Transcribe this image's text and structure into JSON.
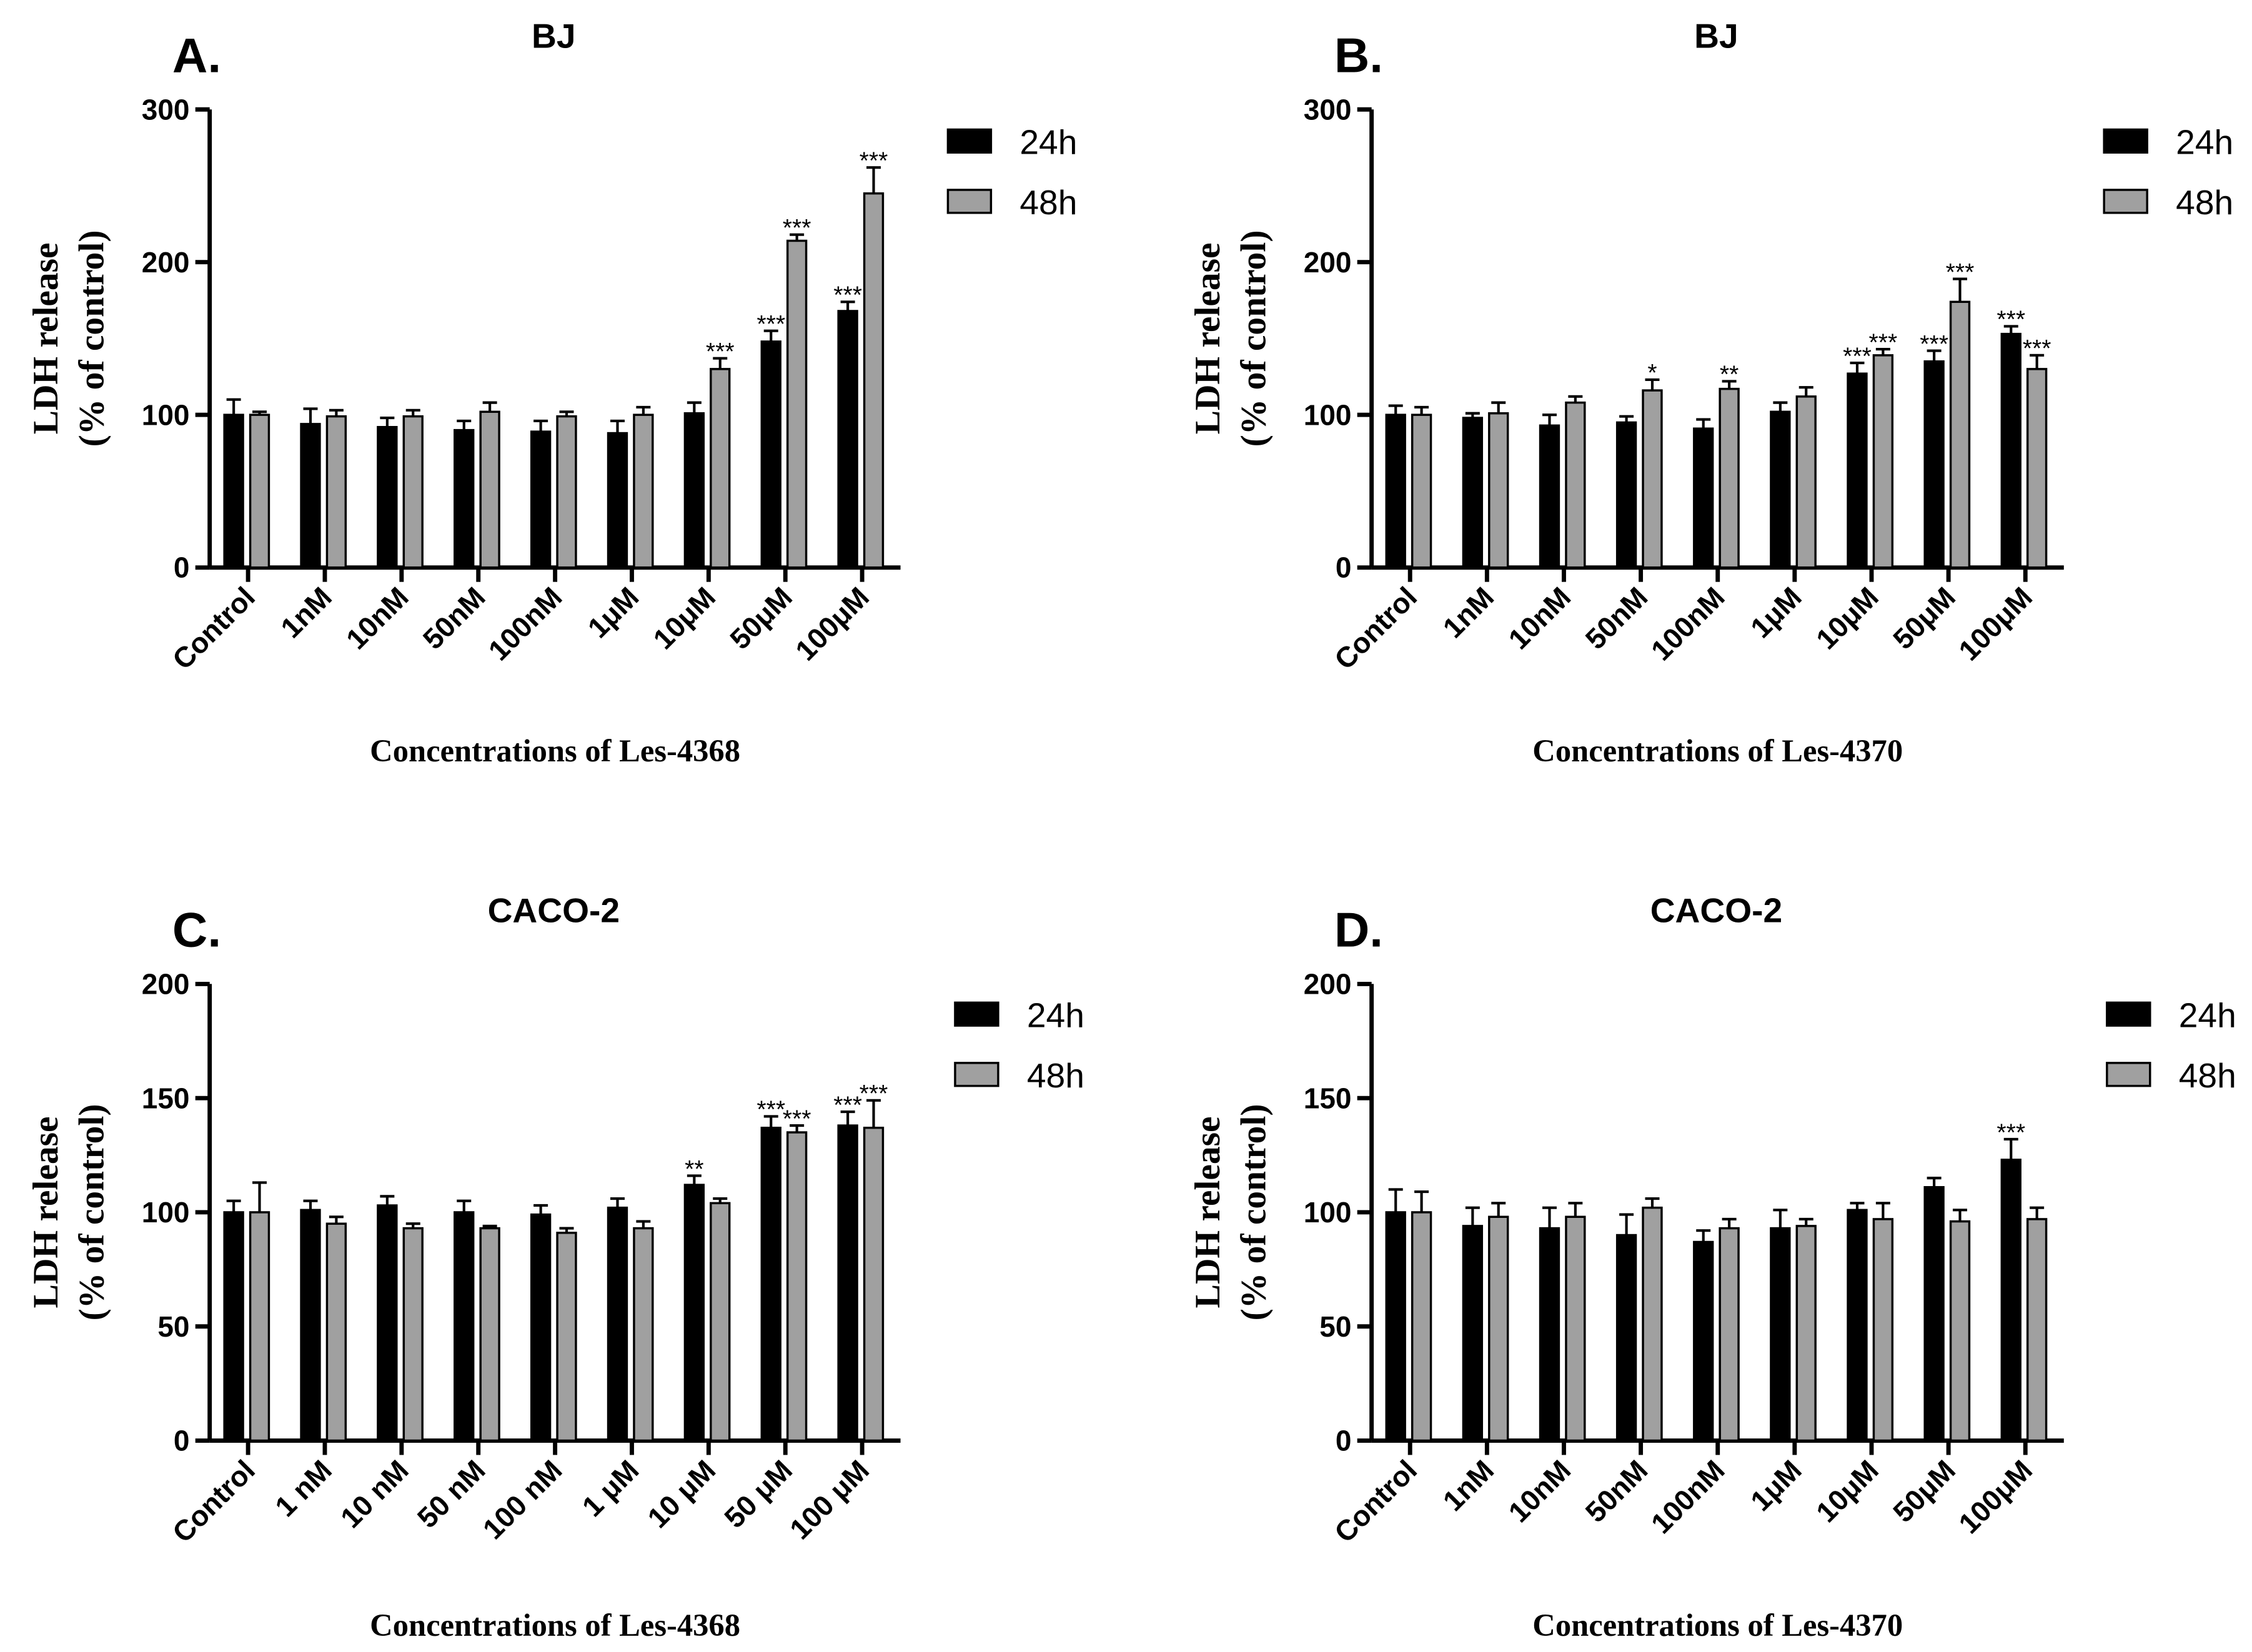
{
  "chart_data": [
    {
      "type": "bar",
      "panel_label": "A.",
      "title": "BJ",
      "x_label": "Concentrations of Les-4368",
      "y_label": [
        "LDH release",
        "(% of control)"
      ],
      "categories": [
        "Control",
        "1nM",
        "10nM",
        "50nM",
        "100nM",
        "1μM",
        "10μM",
        "50μM",
        "100μM"
      ],
      "series": [
        {
          "name": "24h",
          "color": "#000000",
          "values": [
            100,
            94,
            92,
            90,
            89,
            88,
            101,
            148,
            168
          ],
          "errors": [
            10,
            10,
            6,
            6,
            7,
            8,
            7,
            7,
            6
          ],
          "annotations": [
            null,
            null,
            null,
            null,
            null,
            null,
            null,
            "***",
            "***"
          ]
        },
        {
          "name": "48h",
          "color": "#a0a0a0",
          "values": [
            100,
            99,
            99,
            102,
            99,
            100,
            130,
            214,
            245
          ],
          "errors": [
            2,
            4,
            4,
            6,
            3,
            5,
            7,
            4,
            17
          ],
          "annotations": [
            null,
            null,
            null,
            null,
            null,
            null,
            "***",
            "***",
            "***"
          ]
        }
      ],
      "ylim": [
        0,
        300
      ],
      "yticks": [
        0,
        100,
        200,
        300
      ]
    },
    {
      "type": "bar",
      "panel_label": "B.",
      "title": "BJ",
      "x_label": "Concentrations of Les-4370",
      "y_label": [
        "LDH release",
        "(% of control)"
      ],
      "categories": [
        "Control",
        "1nM",
        "10nM",
        "50nM",
        "100nM",
        "1μM",
        "10μM",
        "50μM",
        "100μM"
      ],
      "series": [
        {
          "name": "24h",
          "color": "#000000",
          "values": [
            100,
            98,
            93,
            95,
            91,
            102,
            127,
            135,
            153
          ],
          "errors": [
            6,
            3,
            7,
            4,
            6,
            6,
            7,
            7,
            5
          ],
          "annotations": [
            null,
            null,
            null,
            null,
            null,
            null,
            "***",
            "***",
            "***"
          ]
        },
        {
          "name": "48h",
          "color": "#a0a0a0",
          "values": [
            100,
            101,
            108,
            116,
            117,
            112,
            139,
            174,
            130
          ],
          "errors": [
            5,
            7,
            4,
            7,
            5,
            6,
            4,
            15,
            9
          ],
          "annotations": [
            null,
            null,
            null,
            "*",
            "**",
            null,
            "***",
            "***",
            "***"
          ]
        }
      ],
      "ylim": [
        0,
        300
      ],
      "yticks": [
        0,
        100,
        200,
        300
      ]
    },
    {
      "type": "bar",
      "panel_label": "C.",
      "title": "CACO-2",
      "x_label": "Concentrations of Les-4368",
      "y_label": [
        "LDH release",
        "(% of control)"
      ],
      "categories": [
        "Control",
        "1 nM",
        "10 nM",
        "50 nM",
        "100 nM",
        "1 μM",
        "10 μM",
        "50 μM",
        "100 μM"
      ],
      "series": [
        {
          "name": "24h",
          "color": "#000000",
          "values": [
            100,
            101,
            103,
            100,
            99,
            102,
            112,
            137,
            138
          ],
          "errors": [
            5,
            4,
            4,
            5,
            4,
            4,
            4,
            5,
            6
          ],
          "annotations": [
            null,
            null,
            null,
            null,
            null,
            null,
            "**",
            "***",
            "***"
          ]
        },
        {
          "name": "48h",
          "color": "#a0a0a0",
          "values": [
            100,
            95,
            93,
            93,
            91,
            93,
            104,
            135,
            137
          ],
          "errors": [
            13,
            3,
            2,
            1,
            2,
            3,
            2,
            3,
            12
          ],
          "annotations": [
            null,
            null,
            null,
            null,
            null,
            null,
            null,
            "***",
            "***"
          ]
        }
      ],
      "ylim": [
        0,
        200
      ],
      "yticks": [
        0,
        50,
        100,
        150,
        200
      ]
    },
    {
      "type": "bar",
      "panel_label": "D.",
      "title": "CACO-2",
      "x_label": "Concentrations of Les-4370",
      "y_label": [
        "LDH release",
        "(% of control)"
      ],
      "categories": [
        "Control",
        "1nM",
        "10nM",
        "50nM",
        "100nM",
        "1μM",
        "10μM",
        "50μM",
        "100μM"
      ],
      "series": [
        {
          "name": "24h",
          "color": "#000000",
          "values": [
            100,
            94,
            93,
            90,
            87,
            93,
            101,
            111,
            123
          ],
          "errors": [
            10,
            8,
            9,
            9,
            5,
            8,
            3,
            4,
            9
          ],
          "annotations": [
            null,
            null,
            null,
            null,
            null,
            null,
            null,
            null,
            "***"
          ]
        },
        {
          "name": "48h",
          "color": "#a0a0a0",
          "values": [
            100,
            98,
            98,
            102,
            93,
            94,
            97,
            96,
            97
          ],
          "errors": [
            9,
            6,
            6,
            4,
            4,
            3,
            7,
            5,
            5
          ],
          "annotations": [
            null,
            null,
            null,
            null,
            null,
            null,
            null,
            null,
            null
          ]
        }
      ],
      "ylim": [
        0,
        200
      ],
      "yticks": [
        0,
        50,
        100,
        150,
        200
      ]
    }
  ]
}
